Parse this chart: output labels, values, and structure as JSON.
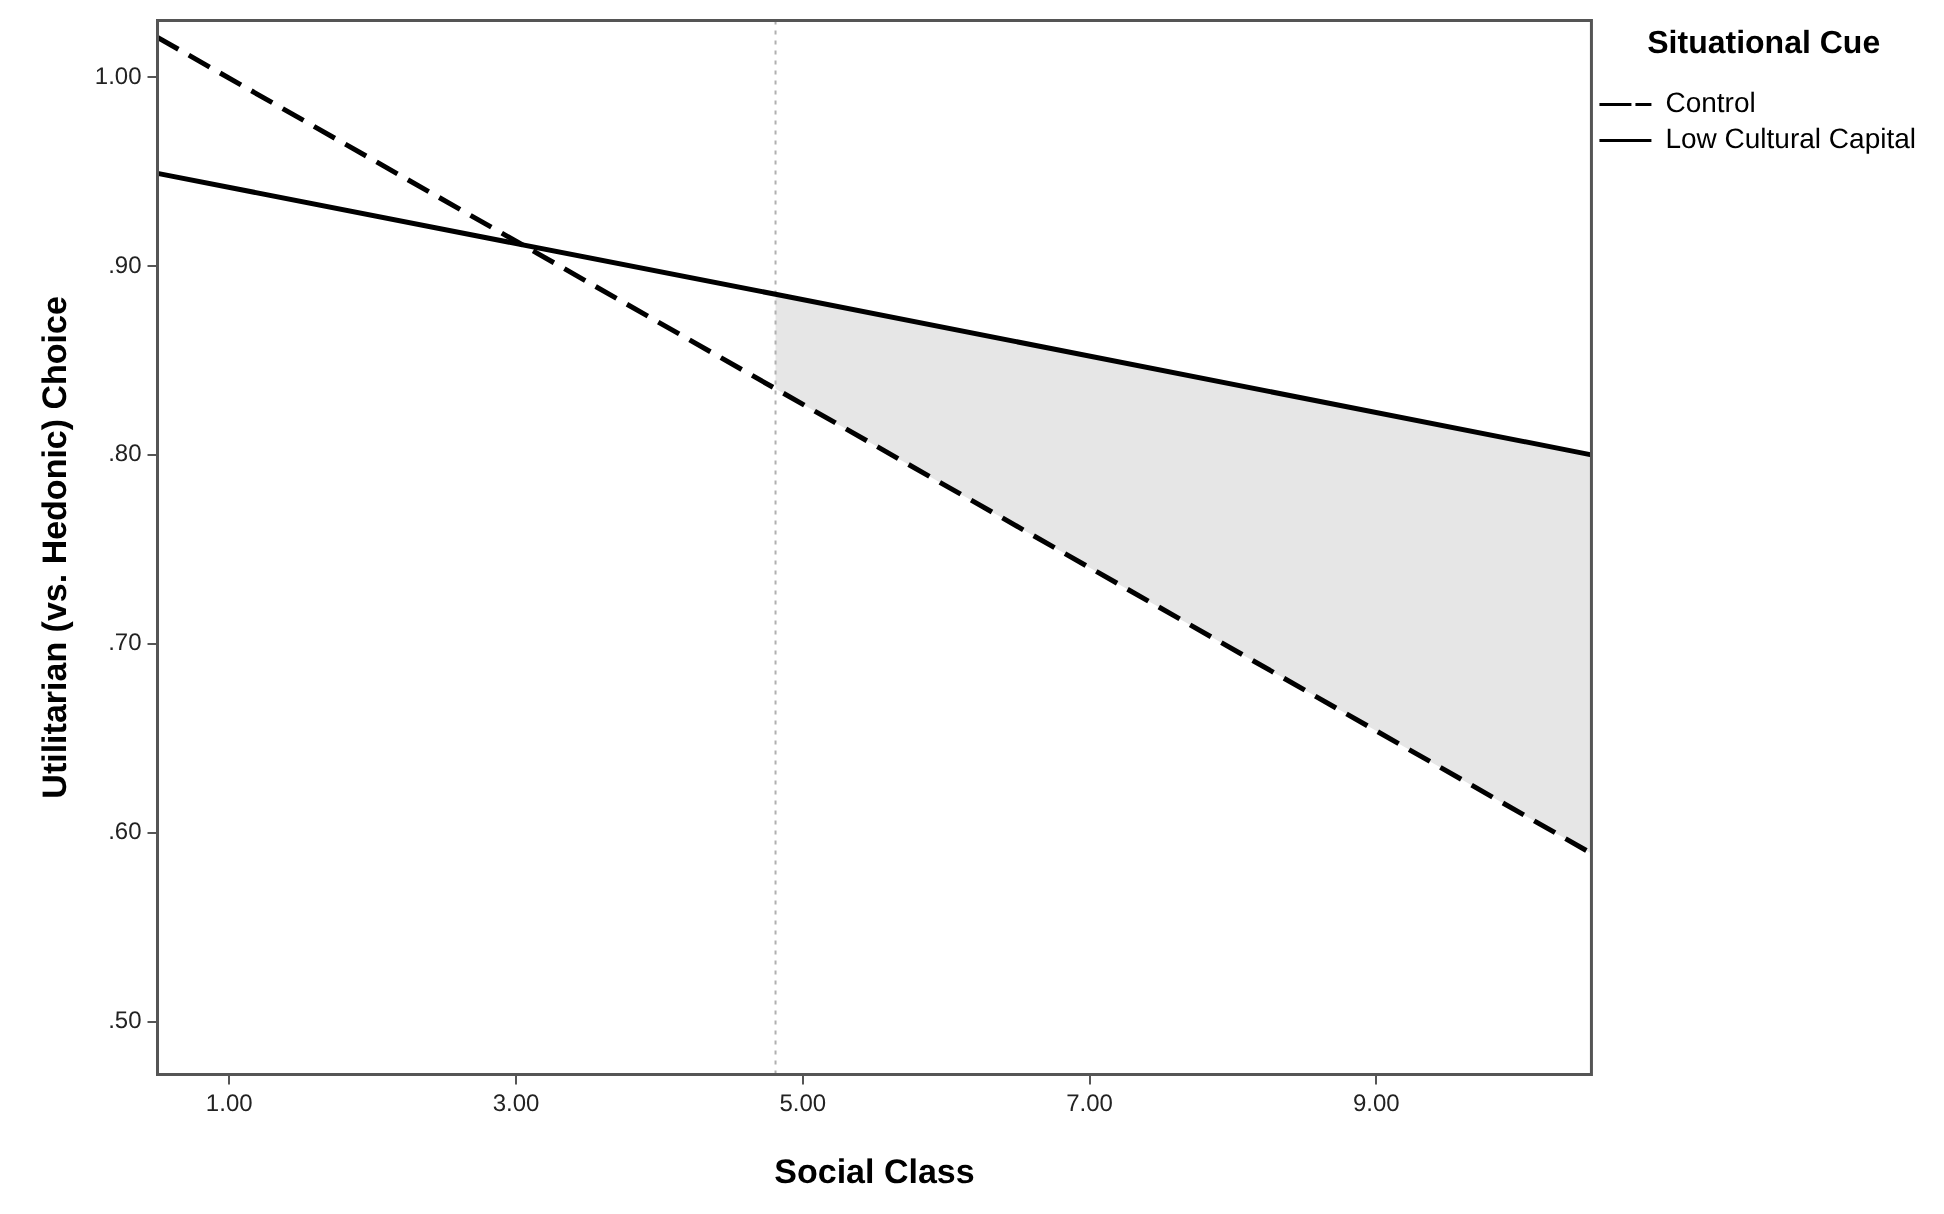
{
  "chart_data": {
    "type": "line",
    "xlabel": "Social Class",
    "ylabel": "Utilitarian (vs. Hedonic) Choice",
    "legend_title": "Situational Cue",
    "legend": "top right",
    "grid": false,
    "xlim": [
      0.5,
      10.5
    ],
    "xticks": [
      {
        "value": 1,
        "label": "1.00"
      },
      {
        "value": 3,
        "label": "3.00"
      },
      {
        "value": 5,
        "label": "5.00"
      },
      {
        "value": 7,
        "label": "7.00"
      },
      {
        "value": 9,
        "label": "9.00"
      }
    ],
    "ylim": [
      0.472,
      1.03
    ],
    "yticks": [
      {
        "value": 0.5,
        "label": ".50"
      },
      {
        "value": 0.6,
        "label": ".60"
      },
      {
        "value": 0.7,
        "label": ".70"
      },
      {
        "value": 0.8,
        "label": ".80"
      },
      {
        "value": 0.9,
        "label": ".90"
      },
      {
        "value": 1.0,
        "label": "1.00"
      }
    ],
    "series": [
      {
        "name": "Control",
        "color": "#000000",
        "line_style": "dashed",
        "x": [
          0.5,
          4.81,
          10.5
        ],
        "values": [
          1.021,
          0.835,
          0.589
        ]
      },
      {
        "name": "Low Cultural Capital",
        "color": "#000000",
        "line_style": "solid",
        "x": [
          0.5,
          4.81,
          10.5
        ],
        "values": [
          0.949,
          0.885,
          0.8
        ],
        "lower": [
          null,
          0.835,
          0.589
        ],
        "upper": [
          null,
          0.885,
          0.8
        ]
      }
    ],
    "ref_lines": [
      {
        "axis": "x",
        "value": 4.81,
        "color": "#b0b0b0",
        "line_style": "dotted"
      }
    ]
  }
}
